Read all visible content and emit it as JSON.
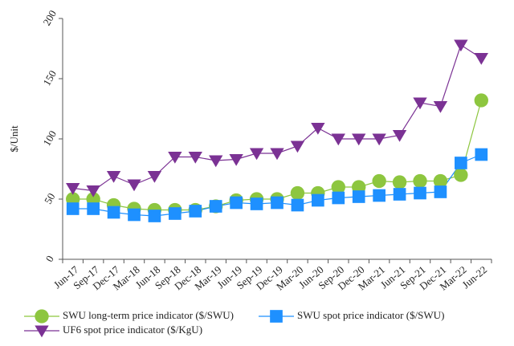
{
  "chart_data": {
    "type": "line",
    "title": "",
    "xlabel": "",
    "ylabel": "$/Unit",
    "ylim": [
      0,
      200
    ],
    "yticks": [
      0,
      50,
      100,
      150,
      200
    ],
    "grid": false,
    "legend_position": "bottom",
    "categories": [
      "Jun-17",
      "Sep-17",
      "Dec-17",
      "Mar-18",
      "Jun-18",
      "Sep-18",
      "Dec-18",
      "Mar-19",
      "Jun-19",
      "Sep-19",
      "Dec-19",
      "Mar-20",
      "Jun-20",
      "Sep-20",
      "Dec-20",
      "Mar-21",
      "Jun-21",
      "Sep-21",
      "Dec-21",
      "Mar-22",
      "Jun-22"
    ],
    "series": [
      {
        "name": "SWU long-term price indicator ($/SWU)",
        "color": "#8dc63f",
        "marker": "circle",
        "values": [
          50,
          50,
          45,
          42,
          41,
          41,
          41,
          44,
          49,
          50,
          50,
          55,
          55,
          60,
          60,
          65,
          64,
          65,
          65,
          70,
          132
        ]
      },
      {
        "name": "SWU spot price indicator ($/SWU)",
        "color": "#1e90ff",
        "marker": "square",
        "values": [
          42,
          42,
          39,
          37,
          36,
          38,
          40,
          44,
          47,
          46,
          47,
          45,
          49,
          51,
          52,
          53,
          54,
          55,
          56,
          80,
          87
        ]
      },
      {
        "name": "UF6 spot price indicator ($/KgU)",
        "color": "#7b3294",
        "marker": "triangle-down",
        "values": [
          59,
          57,
          69,
          62,
          69,
          85,
          85,
          82,
          83,
          88,
          88,
          94,
          109,
          100,
          100,
          100,
          103,
          130,
          127,
          178,
          167
        ]
      }
    ]
  }
}
